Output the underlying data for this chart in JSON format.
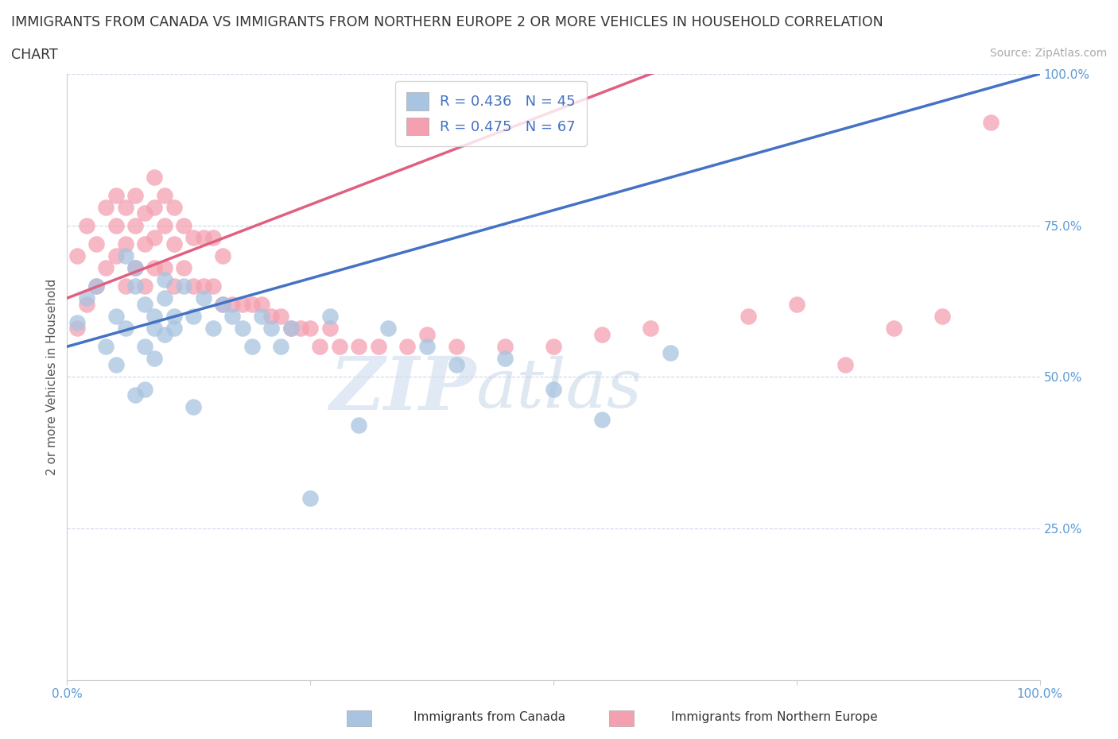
{
  "title_line1": "IMMIGRANTS FROM CANADA VS IMMIGRANTS FROM NORTHERN EUROPE 2 OR MORE VEHICLES IN HOUSEHOLD CORRELATION",
  "title_line2": "CHART",
  "source": "Source: ZipAtlas.com",
  "ylabel": "2 or more Vehicles in Household",
  "xlim": [
    0,
    100
  ],
  "ylim": [
    0,
    100
  ],
  "canada_R": 0.436,
  "canada_N": 45,
  "northern_R": 0.475,
  "northern_N": 67,
  "canada_color": "#a8c4e0",
  "northern_color": "#f4a0b0",
  "canada_line_color": "#4472c4",
  "northern_line_color": "#e06080",
  "watermark_zip": "ZIP",
  "watermark_atlas": "atlas",
  "legend_label_canada": "Immigrants from Canada",
  "legend_label_northern": "Immigrants from Northern Europe",
  "canada_line_x0": 0,
  "canada_line_y0": 55,
  "canada_line_x1": 100,
  "canada_line_y1": 100,
  "northern_line_x0": 0,
  "northern_line_y0": 63,
  "northern_line_x1": 60,
  "northern_line_y1": 100,
  "canada_x": [
    1,
    2,
    3,
    4,
    5,
    6,
    7,
    7,
    8,
    8,
    9,
    9,
    10,
    10,
    11,
    11,
    12,
    13,
    14,
    15,
    16,
    17,
    18,
    19,
    20,
    21,
    22,
    23,
    25,
    27,
    30,
    33,
    37,
    40,
    45,
    50,
    55,
    62,
    13,
    7,
    8,
    9,
    6,
    5,
    10
  ],
  "canada_y": [
    59,
    63,
    65,
    55,
    60,
    58,
    65,
    68,
    62,
    55,
    60,
    58,
    63,
    57,
    60,
    58,
    65,
    60,
    63,
    58,
    62,
    60,
    58,
    55,
    60,
    58,
    55,
    58,
    30,
    60,
    42,
    58,
    55,
    52,
    53,
    48,
    43,
    54,
    45,
    47,
    48,
    53,
    70,
    52,
    66
  ],
  "northern_x": [
    1,
    1,
    2,
    2,
    3,
    3,
    4,
    4,
    5,
    5,
    5,
    6,
    6,
    6,
    7,
    7,
    7,
    8,
    8,
    8,
    9,
    9,
    9,
    9,
    10,
    10,
    10,
    11,
    11,
    11,
    12,
    12,
    13,
    13,
    14,
    14,
    15,
    15,
    16,
    16,
    17,
    18,
    19,
    20,
    21,
    22,
    23,
    24,
    25,
    26,
    27,
    28,
    30,
    32,
    35,
    37,
    40,
    45,
    50,
    55,
    60,
    70,
    75,
    80,
    85,
    90,
    95
  ],
  "northern_y": [
    58,
    70,
    62,
    75,
    65,
    72,
    68,
    78,
    70,
    75,
    80,
    65,
    72,
    78,
    68,
    75,
    80,
    65,
    72,
    77,
    68,
    73,
    78,
    83,
    68,
    75,
    80,
    65,
    72,
    78,
    68,
    75,
    65,
    73,
    65,
    73,
    65,
    73,
    62,
    70,
    62,
    62,
    62,
    62,
    60,
    60,
    58,
    58,
    58,
    55,
    58,
    55,
    55,
    55,
    55,
    57,
    55,
    55,
    55,
    57,
    58,
    60,
    62,
    52,
    58,
    60,
    92
  ]
}
